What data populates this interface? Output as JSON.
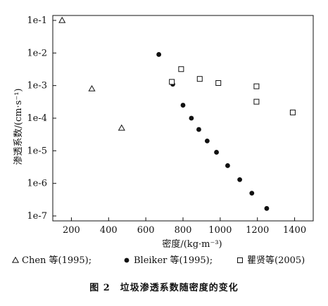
{
  "chart_data": {
    "type": "scatter",
    "xlabel": "密度/(kg·m⁻³)",
    "ylabel": "渗透系数/(cm·s⁻¹)",
    "xlim": [
      100,
      1500
    ],
    "ylim_log10": [
      -7,
      -1
    ],
    "y_scale": "log",
    "x_ticks": [
      200,
      400,
      600,
      800,
      1000,
      1200,
      1400
    ],
    "y_ticks": [
      "1e-1",
      "1e-2",
      "1e-3",
      "1e-4",
      "1e-5",
      "1e-6",
      "1e-7"
    ],
    "y_tick_values": [
      0.1,
      0.01,
      0.001,
      0.0001,
      1e-05,
      1e-06,
      1e-07
    ],
    "legend_placement": "bottom",
    "series": [
      {
        "name": "Chen 等(1995);",
        "marker": "triangle-open",
        "points": [
          [
            150,
            0.1
          ],
          [
            310,
            0.0008
          ],
          [
            470,
            5e-05
          ]
        ]
      },
      {
        "name": "Bleiker 等(1995);",
        "marker": "circle-filled",
        "points": [
          [
            670,
            0.009
          ],
          [
            745,
            0.0011
          ],
          [
            800,
            0.00025
          ],
          [
            845,
            0.0001
          ],
          [
            885,
            4.5e-05
          ],
          [
            930,
            2e-05
          ],
          [
            980,
            9e-06
          ],
          [
            1040,
            3.5e-06
          ],
          [
            1105,
            1.3e-06
          ],
          [
            1170,
            5e-07
          ],
          [
            1250,
            1.7e-07
          ]
        ]
      },
      {
        "name": "瞿贤等(2005)",
        "marker": "square-open",
        "points": [
          [
            740,
            0.0013
          ],
          [
            790,
            0.0032
          ],
          [
            890,
            0.0016
          ],
          [
            990,
            0.0012
          ],
          [
            1195,
            0.00095
          ],
          [
            1195,
            0.00032
          ],
          [
            1390,
            0.00015
          ]
        ]
      }
    ]
  },
  "caption": "图 2　垃圾渗透系数随密度的变化"
}
